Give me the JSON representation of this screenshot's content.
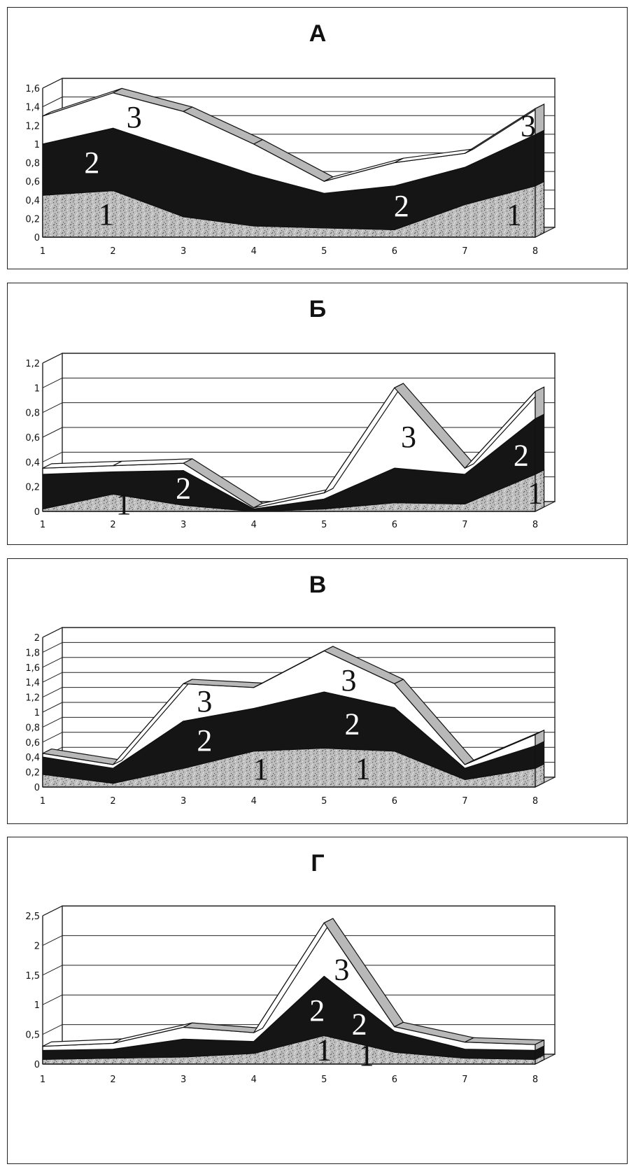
{
  "chart_data": [
    {
      "type": "area",
      "stacked": true,
      "title": "А",
      "x": [
        "1",
        "2",
        "3",
        "4",
        "5",
        "6",
        "7",
        "8"
      ],
      "y_ticks": [
        "0",
        "0,2",
        "0,4",
        "0,6",
        "0,8",
        "1",
        "1,2",
        "1,4",
        "1,6"
      ],
      "ylim": [
        0,
        1.6
      ],
      "grid": true,
      "series": [
        {
          "name": "1",
          "values": [
            0.45,
            0.5,
            0.22,
            0.12,
            0.1,
            0.08,
            0.35,
            0.55
          ]
        },
        {
          "name": "2",
          "values": [
            0.55,
            0.67,
            0.7,
            0.55,
            0.37,
            0.47,
            0.4,
            0.55
          ]
        },
        {
          "name": "3",
          "values": [
            0.3,
            0.38,
            0.43,
            0.33,
            0.13,
            0.25,
            0.15,
            0.28
          ]
        }
      ],
      "labels": [
        {
          "text": "3",
          "series": 2,
          "x": 2.3
        },
        {
          "text": "2",
          "series": 1,
          "x": 1.7
        },
        {
          "text": "1",
          "series": 0,
          "x": 1.9
        },
        {
          "text": "2",
          "series": 1,
          "x": 6.1
        },
        {
          "text": "1",
          "series": 0,
          "x": 7.7
        },
        {
          "text": "3",
          "series": 2,
          "x": 7.9
        }
      ]
    },
    {
      "type": "area",
      "stacked": true,
      "title": "Б",
      "x": [
        "1",
        "2",
        "3",
        "4",
        "5",
        "6",
        "7",
        "8"
      ],
      "y_ticks": [
        "0",
        "0,2",
        "0,4",
        "0,6",
        "0,8",
        "1",
        "1,2"
      ],
      "ylim": [
        0,
        1.2
      ],
      "grid": true,
      "series": [
        {
          "name": "1",
          "values": [
            0.02,
            0.14,
            0.05,
            0.0,
            0.02,
            0.07,
            0.06,
            0.3
          ]
        },
        {
          "name": "2",
          "values": [
            0.28,
            0.18,
            0.28,
            0.02,
            0.08,
            0.28,
            0.24,
            0.45
          ]
        },
        {
          "name": "3",
          "values": [
            0.05,
            0.05,
            0.06,
            0.01,
            0.05,
            0.65,
            0.05,
            0.22
          ]
        }
      ],
      "labels": [
        {
          "text": "1",
          "series": 0,
          "x": 2.15
        },
        {
          "text": "2",
          "series": 1,
          "x": 3.0
        },
        {
          "text": "3",
          "series": 2,
          "x": 6.2
        },
        {
          "text": "2",
          "series": 1,
          "x": 7.8
        },
        {
          "text": "1",
          "series": 0,
          "x": 8.0
        }
      ]
    },
    {
      "type": "area",
      "stacked": true,
      "title": "В",
      "x": [
        "1",
        "2",
        "3",
        "4",
        "5",
        "6",
        "7",
        "8"
      ],
      "y_ticks": [
        "0",
        "0,2",
        "0,4",
        "0,6",
        "0,8",
        "1",
        "1,2",
        "1,4",
        "1,6",
        "1,8",
        "2"
      ],
      "ylim": [
        0,
        2
      ],
      "grid": true,
      "series": [
        {
          "name": "1",
          "values": [
            0.17,
            0.05,
            0.25,
            0.48,
            0.52,
            0.48,
            0.1,
            0.25
          ]
        },
        {
          "name": "2",
          "values": [
            0.23,
            0.2,
            0.63,
            0.57,
            0.75,
            0.58,
            0.15,
            0.3
          ]
        },
        {
          "name": "3",
          "values": [
            0.05,
            0.05,
            0.5,
            0.28,
            0.55,
            0.32,
            0.05,
            0.15
          ]
        }
      ],
      "labels": [
        {
          "text": "3",
          "series": 2,
          "x": 3.3
        },
        {
          "text": "2",
          "series": 1,
          "x": 3.3
        },
        {
          "text": "1",
          "series": 0,
          "x": 4.1
        },
        {
          "text": "3",
          "series": 2,
          "x": 5.35
        },
        {
          "text": "2",
          "series": 1,
          "x": 5.4
        },
        {
          "text": "1",
          "series": 0,
          "x": 5.55
        }
      ]
    },
    {
      "type": "area",
      "stacked": true,
      "title": "Г",
      "x": [
        "1",
        "2",
        "3",
        "4",
        "5",
        "6",
        "7",
        "8"
      ],
      "y_ticks": [
        "0",
        "0,5",
        "1",
        "1,5",
        "2",
        "2,5"
      ],
      "ylim": [
        0,
        2.5
      ],
      "grid": true,
      "series": [
        {
          "name": "1",
          "values": [
            0.08,
            0.1,
            0.12,
            0.18,
            0.48,
            0.2,
            0.1,
            0.08
          ]
        },
        {
          "name": "2",
          "values": [
            0.15,
            0.15,
            0.3,
            0.2,
            1.0,
            0.35,
            0.15,
            0.15
          ]
        },
        {
          "name": "3",
          "values": [
            0.07,
            0.1,
            0.2,
            0.15,
            0.9,
            0.08,
            0.12,
            0.1
          ]
        }
      ],
      "labels": [
        {
          "text": "3",
          "series": 2,
          "x": 5.25
        },
        {
          "text": "2",
          "series": 1,
          "x": 4.9
        },
        {
          "text": "2",
          "series": 1,
          "x": 5.5
        },
        {
          "text": "1",
          "series": 0,
          "x": 5.0
        },
        {
          "text": "1",
          "series": 0,
          "x": 5.6
        }
      ]
    }
  ],
  "colors": {
    "series_1": "#bdbdbd",
    "series_2": "#151515",
    "series_3": "#ffffff",
    "frame": "#222222",
    "ribbon": "#b8b8b8"
  }
}
